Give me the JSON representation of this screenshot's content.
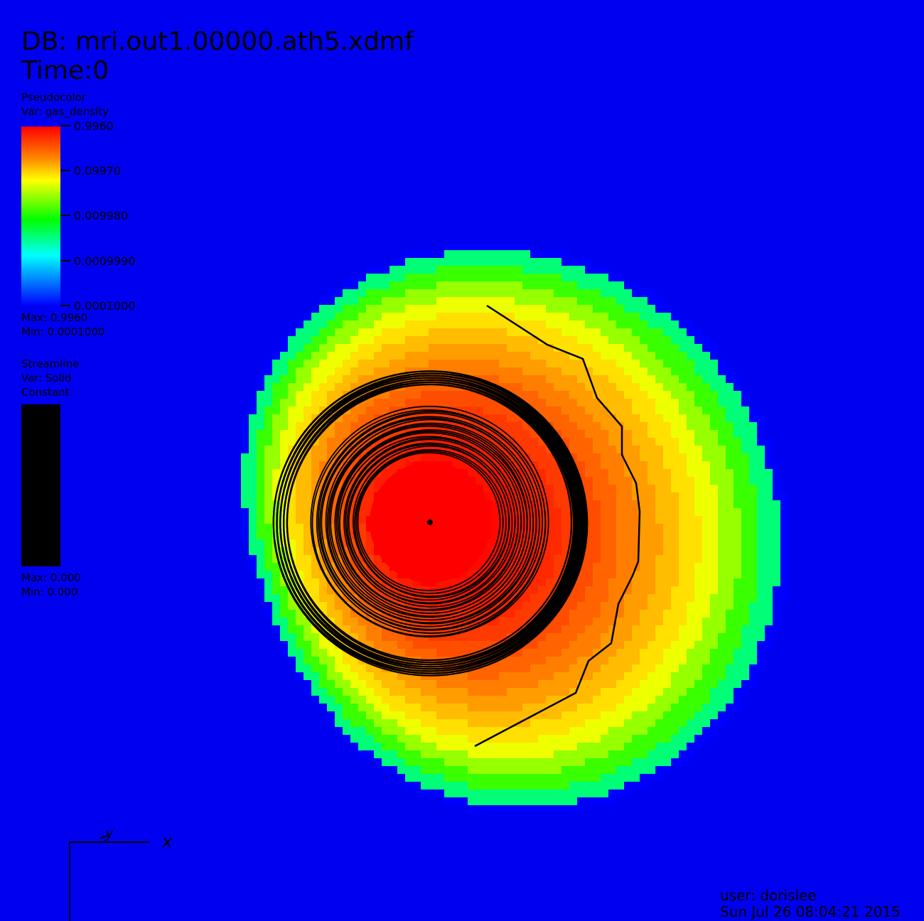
{
  "header": {
    "db_label": "DB: mri.out1.00000.ath5.xdmf",
    "time_label": "Time:0"
  },
  "pseudocolor_legend": {
    "title": "Pseudocolor",
    "var": "Var: gas_density",
    "ticks": [
      "0.9960",
      "0.09970",
      "0.009980",
      "0.0009990",
      "0.0001000"
    ],
    "max": "Max: 0.9960",
    "min": "Min: 0.0001000"
  },
  "streamline_legend": {
    "title": "Streamline",
    "var": "Var: Solid",
    "constant": "Constant.",
    "max": "Max: 0.000",
    "min": "Min: 0.000",
    "color": "#000000"
  },
  "axes": {
    "y_label": "y",
    "x_label": "x"
  },
  "footer": {
    "user": "user: dorislee",
    "date": "Sun Jul 26 08:04:21 2015"
  },
  "colors": {
    "background": "#0000f0",
    "colormap": [
      "#ff0000",
      "#ff8000",
      "#ffff00",
      "#00ff00",
      "#00ffff",
      "#0000ff"
    ]
  }
}
